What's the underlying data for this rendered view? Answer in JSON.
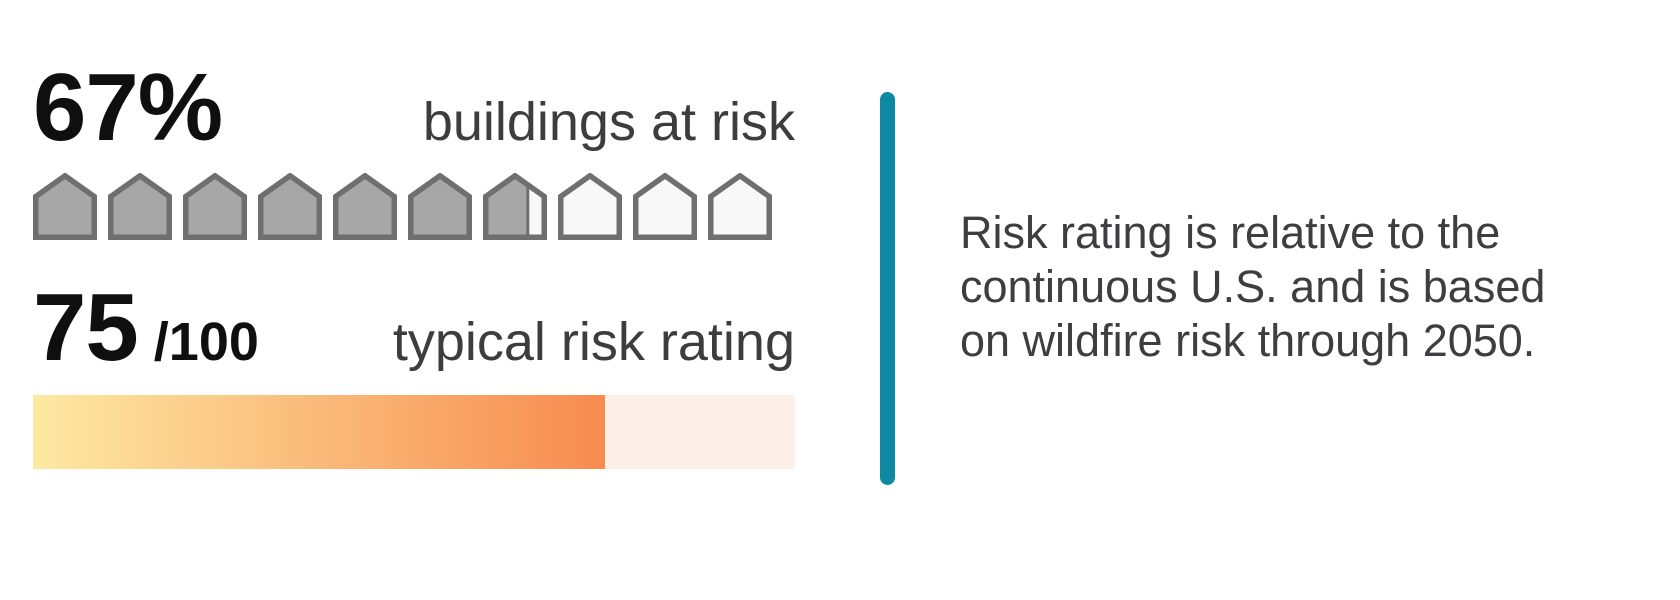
{
  "buildings": {
    "value": "67%",
    "percent": 67,
    "label": "buildings at risk",
    "houses": {
      "count": 10,
      "fill_color": "#a7a7a7",
      "empty_color": "#f8f8f8",
      "border_color": "#6f6f6f"
    }
  },
  "risk_rating": {
    "value": "75",
    "denominator": "/100",
    "score": 75,
    "max": 100,
    "label": "typical risk rating",
    "bar": {
      "gradient_start": "#fde9a2",
      "gradient_end": "#f78b4f",
      "track_color": "#fcefe8"
    }
  },
  "divider_color": "#0e89a3",
  "description": {
    "lines": [
      "Risk rating is relative to the",
      "continuous U.S. and is based",
      "on wildfire risk through 2050."
    ]
  },
  "text_colors": {
    "number": "#0f0f0f",
    "label": "#3d3d3d",
    "paragraph": "#3e3e42"
  },
  "chart_data": [
    {
      "type": "pictograph",
      "title": "buildings at risk",
      "value": 67,
      "unit": "%",
      "icon": "house",
      "icons_total": 10,
      "icons_filled": 6.7
    },
    {
      "type": "bar",
      "title": "typical risk rating",
      "value": 75,
      "max": 100,
      "xlim": [
        0,
        100
      ],
      "note": "horizontal gradient bar filled to 75%"
    }
  ]
}
